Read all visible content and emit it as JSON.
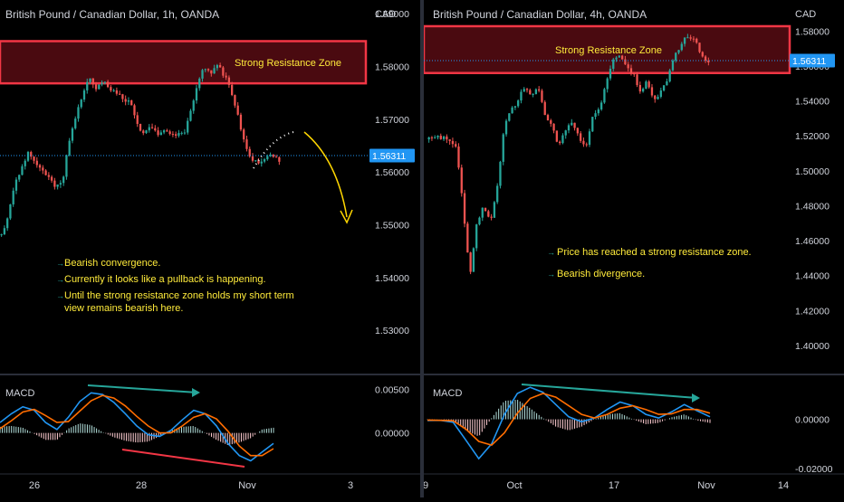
{
  "theme": {
    "background": "#000000",
    "bullish": "#26a69a",
    "bearish": "#ef5350",
    "zone_border": "#f23645",
    "zone_fill": "#4a0a10",
    "annotation_text": "#ffeb3b",
    "macd_line": "#2196f3",
    "signal_line": "#ff6d00",
    "divergence_down": "#f23645",
    "divergence_up": "#26a69a",
    "forecast_arrow": "#ffd600",
    "axis_text": "#d1d4dc"
  },
  "chart_data": [
    {
      "id": "left",
      "type": "candlestick",
      "title": "British Pound / Canadian Dollar, 1h, OANDA",
      "currency_label": "CAD",
      "yaxis_ticks": [
        "1.59000",
        "1.58000",
        "1.57000",
        "1.56000",
        "1.55000",
        "1.54000",
        "1.53000"
      ],
      "ylim": [
        1.5223,
        1.5926
      ],
      "last_price": "1.56311",
      "last_price_value": 1.56311,
      "xaxis_ticks": [
        {
          "label": "26",
          "x": 38
        },
        {
          "label": "28",
          "x": 156
        },
        {
          "label": "Nov",
          "x": 273
        },
        {
          "label": "3",
          "x": 387
        }
      ],
      "resistance_zone": {
        "label": "Strong Resistance Zone",
        "low": 1.5768,
        "high": 1.5848
      },
      "price_path": [
        1.548,
        1.552,
        1.558,
        1.561,
        1.564,
        1.562,
        1.56,
        1.559,
        1.557,
        1.558,
        1.566,
        1.571,
        1.575,
        1.578,
        1.576,
        1.577,
        1.576,
        1.575,
        1.574,
        1.573,
        1.569,
        1.567,
        1.569,
        1.567,
        1.568,
        1.567,
        1.567,
        1.567,
        1.572,
        1.577,
        1.58,
        1.579,
        1.58,
        1.578,
        1.575,
        1.57,
        1.565,
        1.562,
        1.562,
        1.563,
        1.563,
        1.562
      ],
      "annotations": [
        "Bearish convergence.",
        "Currently it looks like a pullback is happening.",
        "Until the strong resistance zone holds my short term view remains bearish here."
      ],
      "macd": {
        "label": "MACD",
        "yaxis_ticks": [
          "0.00500",
          "0.00000"
        ],
        "ylim": [
          -0.0045,
          0.0065
        ],
        "macd_line": [
          0.0012,
          0.0022,
          0.003,
          0.0026,
          0.0012,
          0.0004,
          0.0018,
          0.0036,
          0.0046,
          0.0044,
          0.0035,
          0.0022,
          0.0008,
          -0.0002,
          -0.0004,
          0.0003,
          0.0015,
          0.0026,
          0.0022,
          0.0008,
          -0.0012,
          -0.0026,
          -0.0032,
          -0.0022,
          -0.0012
        ],
        "signal_line": [
          0.0005,
          0.0014,
          0.0024,
          0.0027,
          0.002,
          0.0012,
          0.0013,
          0.0025,
          0.0037,
          0.0043,
          0.004,
          0.0031,
          0.0019,
          0.0008,
          0.0,
          0.0,
          0.0008,
          0.0018,
          0.0022,
          0.0016,
          0.0002,
          -0.0015,
          -0.0026,
          -0.0026,
          -0.0018
        ]
      }
    },
    {
      "id": "right",
      "type": "candlestick",
      "title": "British Pound / Canadian Dollar, 4h, OANDA",
      "currency_label": "CAD",
      "yaxis_ticks": [
        "1.58000",
        "1.56000",
        "1.54000",
        "1.52000",
        "1.50000",
        "1.48000",
        "1.46000",
        "1.44000",
        "1.42000",
        "1.40000"
      ],
      "ylim": [
        1.3855,
        1.5978
      ],
      "last_price": "1.56311",
      "last_price_value": 1.56311,
      "xaxis_ticks": [
        {
          "label": "9",
          "x": 2
        },
        {
          "label": "Oct",
          "x": 100
        },
        {
          "label": "17",
          "x": 210
        },
        {
          "label": "Nov",
          "x": 312
        },
        {
          "label": "14",
          "x": 397
        }
      ],
      "resistance_zone": {
        "label": "Strong Resistance Zone",
        "low": 1.556,
        "high": 1.5828
      },
      "price_path": [
        1.518,
        1.52,
        1.519,
        1.517,
        1.515,
        1.48,
        1.44,
        1.47,
        1.48,
        1.47,
        1.49,
        1.525,
        1.535,
        1.54,
        1.548,
        1.543,
        1.548,
        1.532,
        1.526,
        1.515,
        1.524,
        1.527,
        1.52,
        1.512,
        1.53,
        1.535,
        1.55,
        1.565,
        1.565,
        1.56,
        1.555,
        1.545,
        1.552,
        1.54,
        1.545,
        1.553,
        1.565,
        1.572,
        1.578,
        1.575,
        1.565,
        1.563
      ],
      "annotations": [
        "Price has reached a strong resistance zone.",
        "Bearish divergence."
      ],
      "macd": {
        "label": "MACD",
        "yaxis_ticks": [
          "0.00000",
          "-0.02000"
        ],
        "ylim": [
          -0.0215,
          0.0175
        ],
        "macd_line": [
          -0.0005,
          -0.0004,
          -0.0012,
          -0.0085,
          -0.016,
          -0.01,
          0.002,
          0.0105,
          0.013,
          0.011,
          0.006,
          0.001,
          -0.001,
          0.0005,
          0.004,
          0.007,
          0.0055,
          0.002,
          0.0005,
          0.003,
          0.006,
          0.0035,
          0.001
        ],
        "signal_line": [
          -0.0003,
          -0.0004,
          -0.0006,
          -0.004,
          -0.009,
          -0.0105,
          -0.0055,
          0.0025,
          0.0085,
          0.0105,
          0.009,
          0.0055,
          0.002,
          0.0005,
          0.002,
          0.0045,
          0.0055,
          0.004,
          0.002,
          0.0022,
          0.004,
          0.004,
          0.0025
        ]
      }
    }
  ]
}
